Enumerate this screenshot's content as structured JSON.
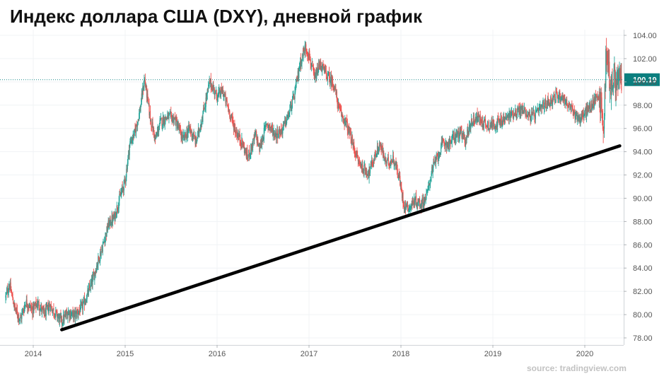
{
  "title": "Индекс доллара США (DXY), дневной график",
  "source": "source: tradingview.com",
  "chart_data": {
    "type": "candlestick",
    "y_ticks": [
      "104.00",
      "102.00",
      "100.00",
      "98.00",
      "96.00",
      "94.00",
      "92.00",
      "90.00",
      "88.00",
      "86.00",
      "84.00",
      "82.00",
      "80.00",
      "78.00"
    ],
    "x_ticks": [
      "2014",
      "2015",
      "2016",
      "2017",
      "2018",
      "2019",
      "2020"
    ],
    "ylim": [
      77.5,
      104.8
    ],
    "xlim": [
      2013.7,
      2020.45
    ],
    "last_price": "100.19",
    "current_price_line": 100.19,
    "colors": {
      "up": "#26a69a",
      "down": "#ef5350",
      "trendline": "#000000",
      "price_line": "#1a8a8a",
      "label_bg": "#0b7f7f"
    },
    "trendline": {
      "start": {
        "x": 2014.31,
        "y": 78.7
      },
      "end": {
        "x": 2020.38,
        "y": 94.5
      }
    },
    "price_path": [
      [
        2013.7,
        81.5
      ],
      [
        2013.74,
        82.6
      ],
      [
        2013.8,
        80.5
      ],
      [
        2013.86,
        79.6
      ],
      [
        2013.92,
        81.1
      ],
      [
        2013.99,
        80.4
      ],
      [
        2014.05,
        81.0
      ],
      [
        2014.12,
        80.0
      ],
      [
        2014.18,
        80.8
      ],
      [
        2014.25,
        80.0
      ],
      [
        2014.31,
        79.4
      ],
      [
        2014.38,
        80.2
      ],
      [
        2014.45,
        79.9
      ],
      [
        2014.53,
        80.6
      ],
      [
        2014.58,
        81.5
      ],
      [
        2014.64,
        82.8
      ],
      [
        2014.7,
        84.5
      ],
      [
        2014.76,
        86.0
      ],
      [
        2014.82,
        87.8
      ],
      [
        2014.88,
        88.3
      ],
      [
        2014.94,
        90.0
      ],
      [
        2015.0,
        91.5
      ],
      [
        2015.05,
        94.7
      ],
      [
        2015.1,
        95.5
      ],
      [
        2015.16,
        97.5
      ],
      [
        2015.21,
        100.3
      ],
      [
        2015.27,
        97.0
      ],
      [
        2015.33,
        95.0
      ],
      [
        2015.38,
        96.5
      ],
      [
        2015.46,
        97.0
      ],
      [
        2015.54,
        96.8
      ],
      [
        2015.63,
        95.0
      ],
      [
        2015.7,
        96.0
      ],
      [
        2015.77,
        94.8
      ],
      [
        2015.84,
        97.0
      ],
      [
        2015.92,
        100.0
      ],
      [
        2016.0,
        98.8
      ],
      [
        2016.06,
        99.2
      ],
      [
        2016.13,
        97.5
      ],
      [
        2016.2,
        95.8
      ],
      [
        2016.27,
        94.8
      ],
      [
        2016.33,
        93.5
      ],
      [
        2016.38,
        94.5
      ],
      [
        2016.42,
        95.5
      ],
      [
        2016.46,
        94.2
      ],
      [
        2016.54,
        96.5
      ],
      [
        2016.63,
        95.5
      ],
      [
        2016.7,
        95.8
      ],
      [
        2016.77,
        97.0
      ],
      [
        2016.84,
        98.8
      ],
      [
        2016.9,
        101.5
      ],
      [
        2016.96,
        103.0
      ],
      [
        2017.0,
        102.3
      ],
      [
        2017.06,
        100.2
      ],
      [
        2017.12,
        101.5
      ],
      [
        2017.2,
        100.5
      ],
      [
        2017.27,
        99.8
      ],
      [
        2017.33,
        97.5
      ],
      [
        2017.4,
        96.5
      ],
      [
        2017.47,
        94.8
      ],
      [
        2017.53,
        93.3
      ],
      [
        2017.59,
        92.5
      ],
      [
        2017.65,
        92.2
      ],
      [
        2017.71,
        93.5
      ],
      [
        2017.77,
        94.6
      ],
      [
        2017.84,
        93.0
      ],
      [
        2017.92,
        93.4
      ],
      [
        2017.98,
        91.8
      ],
      [
        2018.03,
        89.5
      ],
      [
        2018.09,
        89.2
      ],
      [
        2018.15,
        89.8
      ],
      [
        2018.22,
        89.5
      ],
      [
        2018.28,
        90.2
      ],
      [
        2018.34,
        92.5
      ],
      [
        2018.4,
        93.6
      ],
      [
        2018.46,
        94.8
      ],
      [
        2018.52,
        94.6
      ],
      [
        2018.58,
        95.3
      ],
      [
        2018.64,
        95.6
      ],
      [
        2018.7,
        95.0
      ],
      [
        2018.76,
        96.5
      ],
      [
        2018.82,
        97.0
      ],
      [
        2018.88,
        96.6
      ],
      [
        2018.95,
        96.3
      ],
      [
        2019.01,
        96.4
      ],
      [
        2019.08,
        96.5
      ],
      [
        2019.15,
        96.9
      ],
      [
        2019.21,
        97.3
      ],
      [
        2019.28,
        97.5
      ],
      [
        2019.34,
        97.6
      ],
      [
        2019.4,
        97.0
      ],
      [
        2019.47,
        97.2
      ],
      [
        2019.53,
        97.8
      ],
      [
        2019.59,
        98.2
      ],
      [
        2019.65,
        98.5
      ],
      [
        2019.71,
        98.9
      ],
      [
        2019.77,
        98.6
      ],
      [
        2019.83,
        97.8
      ],
      [
        2019.89,
        97.3
      ],
      [
        2019.95,
        96.8
      ],
      [
        2020.01,
        97.4
      ],
      [
        2020.08,
        98.0
      ],
      [
        2020.14,
        99.0
      ],
      [
        2020.18,
        98.0
      ],
      [
        2020.2,
        95.5
      ],
      [
        2020.22,
        99.5
      ],
      [
        2020.23,
        102.5
      ],
      [
        2020.25,
        101.8
      ],
      [
        2020.28,
        99.5
      ],
      [
        2020.32,
        100.2
      ],
      [
        2020.36,
        100.0
      ],
      [
        2020.4,
        100.19
      ]
    ]
  }
}
